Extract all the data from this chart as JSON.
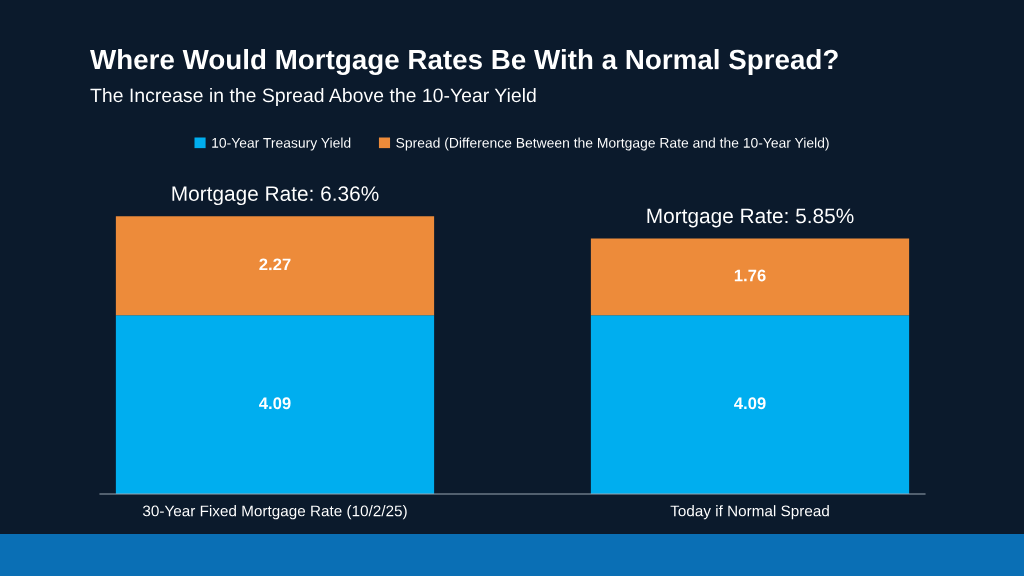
{
  "chart_data": {
    "type": "bar",
    "title": "Where Would Mortgage Rates Be With a Normal Spread?",
    "subtitle": "The Increase in the Spread Above the 10-Year Yield",
    "categories": [
      "30-Year Fixed Mortgage Rate (10/2/25)",
      "Today if Normal Spread"
    ],
    "series": [
      {
        "name": "10-Year Treasury Yield",
        "color": "#00aeef",
        "values": [
          4.09,
          4.09
        ]
      },
      {
        "name": "Spread (Difference Between the Mortgage Rate and the 10-Year Yield)",
        "color": "#ed8b3a",
        "values": [
          2.27,
          1.76
        ]
      }
    ],
    "stacked": true,
    "data_labels": true,
    "totals": [
      "Mortgage Rate: 6.36%",
      "Mortgage Rate: 5.85%"
    ],
    "legend": "top",
    "grid": false
  }
}
